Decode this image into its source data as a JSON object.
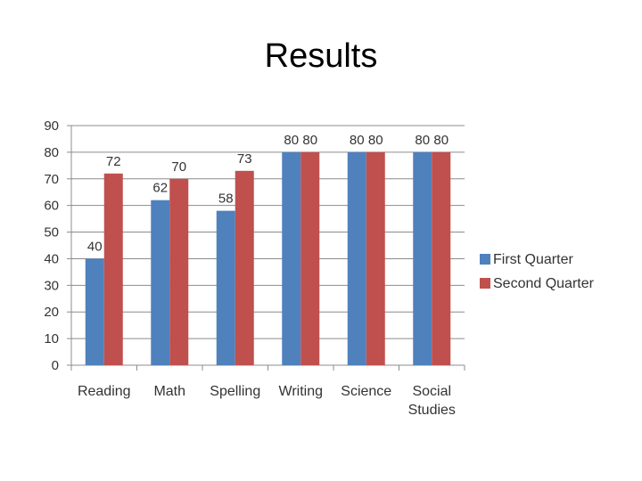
{
  "slide": {
    "title": "Results"
  },
  "chart_data": {
    "type": "bar",
    "categories": [
      "Reading",
      "Math",
      "Spelling",
      "Writing",
      "Science",
      "Social Studies"
    ],
    "category_lines": [
      [
        "Reading"
      ],
      [
        "Math"
      ],
      [
        "Spelling"
      ],
      [
        "Writing"
      ],
      [
        "Science"
      ],
      [
        "Social",
        "Studies"
      ]
    ],
    "series": [
      {
        "name": "First Quarter",
        "color": "#4F81BD",
        "values": [
          40,
          62,
          58,
          80,
          80,
          80
        ]
      },
      {
        "name": "Second Quarter",
        "color": "#C0504D",
        "values": [
          72,
          70,
          73,
          80,
          80,
          80
        ]
      }
    ],
    "ylim": [
      0,
      90
    ],
    "y_ticks": [
      0,
      10,
      20,
      30,
      40,
      50,
      60,
      70,
      80,
      90
    ],
    "grid": true,
    "legend_position": "right",
    "data_labels": true
  }
}
